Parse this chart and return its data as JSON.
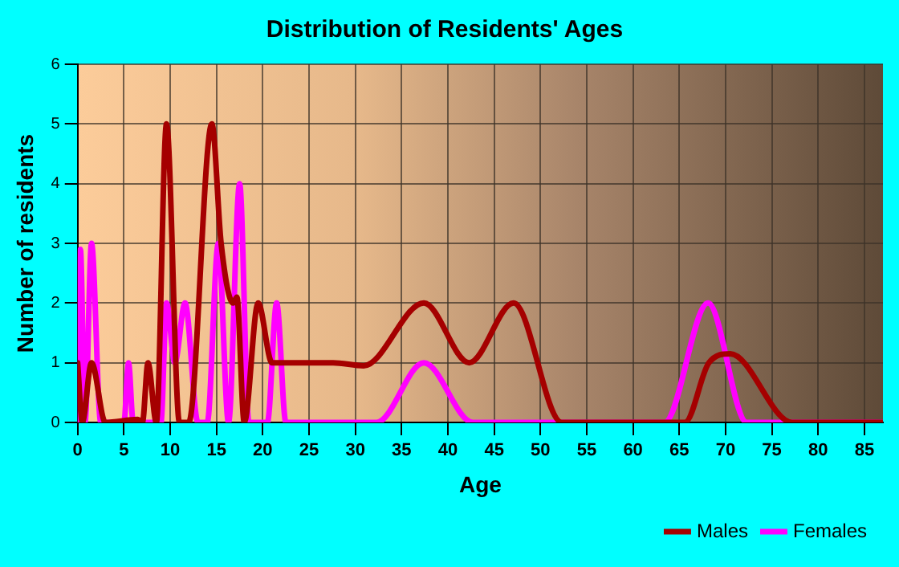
{
  "chart_data": {
    "type": "line",
    "title": "Distribution of Residents' Ages",
    "xlabel": "Age",
    "ylabel": "Number of residents",
    "xlim": [
      0,
      87
    ],
    "xticks": [
      0,
      5,
      10,
      15,
      20,
      25,
      30,
      35,
      40,
      45,
      50,
      55,
      60,
      65,
      70,
      75,
      80,
      85
    ],
    "ylim": [
      0,
      6
    ],
    "yticks": [
      0,
      1,
      2,
      3,
      4,
      5,
      6
    ],
    "grid": true,
    "legend": "bottom right",
    "marker": "none",
    "line_style": "solid",
    "series": [
      {
        "name": "Males",
        "color": "#a50000",
        "x": [
          0,
          0.5,
          1.5,
          3,
          6.5,
          7,
          7.6,
          8.5,
          9.6,
          11,
          12,
          14.5,
          15.5,
          16.8,
          17.2,
          18,
          19.5,
          21,
          27.6,
          30.9,
          37.4,
          42.3,
          47.1,
          52.3,
          65.6,
          68.2,
          70.5,
          77.2,
          87
        ],
        "values": [
          1,
          0,
          1,
          0,
          0.05,
          0,
          1,
          0,
          5,
          0,
          0,
          5,
          3,
          2,
          2.1,
          0,
          2,
          1,
          1,
          0.95,
          2,
          1,
          2,
          0,
          0,
          1,
          1.15,
          0,
          0
        ]
      },
      {
        "name": "Females",
        "color": "#ff00ff",
        "x": [
          0,
          0.3,
          0.8,
          1.5,
          2.5,
          5,
          5.5,
          6,
          7,
          9,
          9.6,
          10.5,
          11.6,
          13,
          14,
          15.2,
          16.3,
          17.5,
          18.5,
          20.5,
          21.5,
          22.5,
          32.3,
          37.4,
          42.7,
          63.4,
          68.1,
          72.3,
          87
        ],
        "values": [
          0,
          2.9,
          0,
          3,
          0,
          0,
          1,
          0,
          0,
          0,
          2,
          1,
          2,
          0,
          0,
          3,
          0,
          4,
          0,
          0,
          2,
          0,
          0,
          1,
          0,
          0,
          2,
          0,
          0
        ]
      }
    ]
  }
}
